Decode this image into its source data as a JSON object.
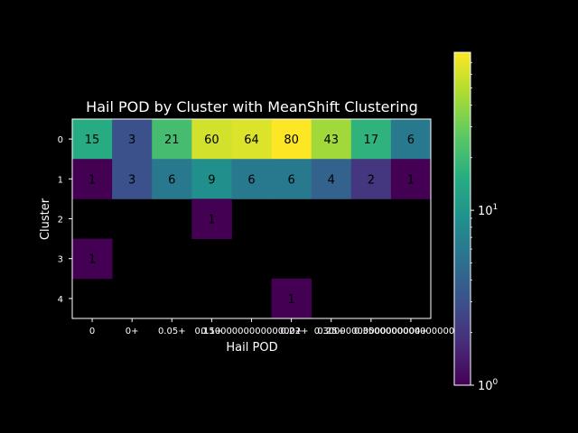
{
  "chart_data": {
    "type": "heatmap",
    "title": "Hail POD by Cluster with MeanShift Clustering",
    "xlabel": "Hail POD",
    "ylabel": "Cluster",
    "x_tick_labels": [
      "0",
      "0+",
      "0.05+",
      "0.1+",
      "0.15000000000000002+",
      "0.2+",
      "0.25+",
      "0.30000000000000004+",
      "0.35000000000000003+"
    ],
    "y_tick_labels": [
      "0",
      "1",
      "2",
      "3",
      "4"
    ],
    "values": [
      [
        15,
        3,
        21,
        60,
        64,
        80,
        43,
        17,
        6
      ],
      [
        1,
        3,
        6,
        9,
        6,
        6,
        4,
        2,
        1
      ],
      [
        null,
        null,
        null,
        1,
        null,
        null,
        null,
        null,
        null
      ],
      [
        1,
        null,
        null,
        null,
        null,
        null,
        null,
        null,
        null
      ],
      [
        null,
        null,
        null,
        null,
        null,
        1,
        null,
        null,
        null
      ]
    ],
    "color_scale": "log",
    "colormap": "viridis",
    "colorbar": {
      "min": 1,
      "max": 80,
      "tick_labels": [
        {
          "value": 1,
          "base": "10",
          "exp": "0"
        },
        {
          "value": 10,
          "base": "10",
          "exp": "1"
        }
      ]
    },
    "background": "#000000",
    "text_color": "#ffffff",
    "grid": false,
    "legend": "colorbar-right"
  }
}
